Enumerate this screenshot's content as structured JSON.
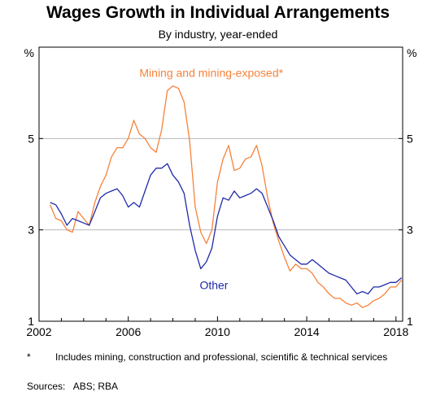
{
  "title": "Wages Growth in Individual Arrangements",
  "subtitle": "By industry, year-ended",
  "footnote": {
    "marker": "*",
    "text": "Includes mining, construction and professional, scientific & technical services"
  },
  "sources": "Sources:   ABS; RBA",
  "chart_data": {
    "type": "line",
    "title": "Wages Growth in Individual Arrangements",
    "subtitle": "By industry, year-ended",
    "ylabel_left": "%",
    "ylabel_right": "%",
    "ylim": [
      1,
      7
    ],
    "yticks": [
      1,
      3,
      5
    ],
    "xlim": [
      2002,
      2018.3
    ],
    "xticks": [
      2002,
      2006,
      2010,
      2014,
      2018
    ],
    "grid": true,
    "series": [
      {
        "name": "Mining and mining-exposed*",
        "color": "#f7823a",
        "x": [
          2002.5,
          2002.75,
          2003.0,
          2003.25,
          2003.5,
          2003.75,
          2004.0,
          2004.25,
          2004.5,
          2004.75,
          2005.0,
          2005.25,
          2005.5,
          2005.75,
          2006.0,
          2006.25,
          2006.5,
          2006.75,
          2007.0,
          2007.25,
          2007.5,
          2007.75,
          2008.0,
          2008.25,
          2008.5,
          2008.75,
          2009.0,
          2009.25,
          2009.5,
          2009.75,
          2010.0,
          2010.25,
          2010.5,
          2010.75,
          2011.0,
          2011.25,
          2011.5,
          2011.75,
          2012.0,
          2012.25,
          2012.5,
          2012.75,
          2013.0,
          2013.25,
          2013.5,
          2013.75,
          2014.0,
          2014.25,
          2014.5,
          2014.75,
          2015.0,
          2015.25,
          2015.5,
          2015.75,
          2016.0,
          2016.25,
          2016.5,
          2016.75,
          2017.0,
          2017.25,
          2017.5,
          2017.75,
          2018.0,
          2018.25
        ],
        "values": [
          3.55,
          3.25,
          3.2,
          3.0,
          2.95,
          3.4,
          3.25,
          3.1,
          3.6,
          3.95,
          4.2,
          4.6,
          4.8,
          4.8,
          5.0,
          5.4,
          5.1,
          5.0,
          4.8,
          4.7,
          5.2,
          6.05,
          6.15,
          6.1,
          5.8,
          4.95,
          3.5,
          2.95,
          2.7,
          3.0,
          4.05,
          4.55,
          4.85,
          4.3,
          4.35,
          4.55,
          4.6,
          4.85,
          4.4,
          3.7,
          3.15,
          2.75,
          2.4,
          2.1,
          2.25,
          2.15,
          2.15,
          2.05,
          1.85,
          1.75,
          1.6,
          1.5,
          1.5,
          1.4,
          1.35,
          1.4,
          1.3,
          1.35,
          1.45,
          1.5,
          1.6,
          1.75,
          1.75,
          1.9
        ]
      },
      {
        "name": "Other",
        "color": "#1f2aa8",
        "x": [
          2002.5,
          2002.75,
          2003.0,
          2003.25,
          2003.5,
          2003.75,
          2004.0,
          2004.25,
          2004.5,
          2004.75,
          2005.0,
          2005.25,
          2005.5,
          2005.75,
          2006.0,
          2006.25,
          2006.5,
          2006.75,
          2007.0,
          2007.25,
          2007.5,
          2007.75,
          2008.0,
          2008.25,
          2008.5,
          2008.75,
          2009.0,
          2009.25,
          2009.5,
          2009.75,
          2010.0,
          2010.25,
          2010.5,
          2010.75,
          2011.0,
          2011.25,
          2011.5,
          2011.75,
          2012.0,
          2012.25,
          2012.5,
          2012.75,
          2013.0,
          2013.25,
          2013.5,
          2013.75,
          2014.0,
          2014.25,
          2014.5,
          2014.75,
          2015.0,
          2015.25,
          2015.5,
          2015.75,
          2016.0,
          2016.25,
          2016.5,
          2016.75,
          2017.0,
          2017.25,
          2017.5,
          2017.75,
          2018.0,
          2018.25
        ],
        "values": [
          3.6,
          3.55,
          3.35,
          3.1,
          3.25,
          3.2,
          3.15,
          3.1,
          3.4,
          3.7,
          3.8,
          3.85,
          3.9,
          3.75,
          3.5,
          3.6,
          3.5,
          3.85,
          4.2,
          4.35,
          4.35,
          4.45,
          4.2,
          4.05,
          3.8,
          3.1,
          2.55,
          2.15,
          2.3,
          2.6,
          3.3,
          3.7,
          3.65,
          3.85,
          3.7,
          3.75,
          3.8,
          3.9,
          3.8,
          3.5,
          3.2,
          2.85,
          2.65,
          2.45,
          2.35,
          2.25,
          2.25,
          2.35,
          2.25,
          2.15,
          2.05,
          2.0,
          1.95,
          1.9,
          1.75,
          1.6,
          1.65,
          1.6,
          1.75,
          1.75,
          1.8,
          1.85,
          1.85,
          1.95
        ]
      }
    ],
    "annotations": [
      {
        "text": "Mining and mining-exposed*",
        "series": 0,
        "x": 2006.5,
        "y": 6.35
      },
      {
        "text": "Other",
        "series": 1,
        "x": 2009.2,
        "y": 1.7
      }
    ]
  }
}
